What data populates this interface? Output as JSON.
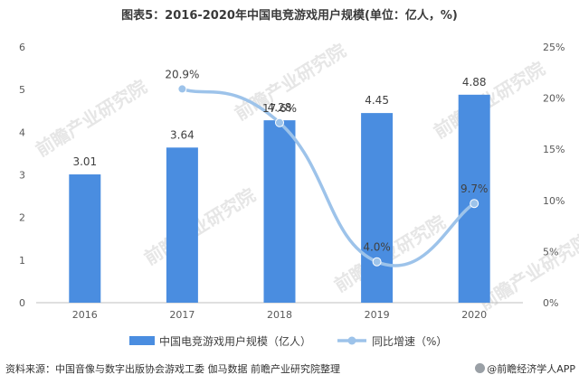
{
  "chart_data": {
    "type": "bar",
    "title": "图表5：2016-2020年中国电竞游戏用户规模(单位：亿人，%)",
    "categories": [
      "2016",
      "2017",
      "2018",
      "2019",
      "2020"
    ],
    "series": [
      {
        "name": "中国电竞游戏用户规模（亿人）",
        "type": "bar",
        "axis": "left",
        "color": "#4a8de0",
        "values": [
          3.01,
          3.64,
          4.28,
          4.45,
          4.88
        ],
        "labels": [
          "3.01",
          "3.64",
          "4.28",
          "4.45",
          "4.88"
        ]
      },
      {
        "name": "同比增速（%）",
        "type": "line",
        "axis": "right",
        "color": "#9dc3ea",
        "x": [
          "2017",
          "2018",
          "2019",
          "2020"
        ],
        "values": [
          20.9,
          17.6,
          4.0,
          9.7
        ],
        "labels": [
          "20.9%",
          "17.6%",
          "4.0%",
          "9.7%"
        ]
      }
    ],
    "ylim_left": [
      0,
      6
    ],
    "yticks_left": [
      "0",
      "1",
      "2",
      "3",
      "4",
      "5",
      "6"
    ],
    "ylim_right": [
      0,
      25
    ],
    "yticks_right": [
      "0%",
      "5%",
      "10%",
      "15%",
      "20%",
      "25%"
    ],
    "grid": false,
    "legend_position": "bottom"
  },
  "watermark": "前瞻产业研究院",
  "footer": {
    "source": "资料来源：中国音像与数字出版协会游戏工委 伽马数据 前瞻产业研究院整理",
    "brand": "@前瞻经济学人APP"
  }
}
